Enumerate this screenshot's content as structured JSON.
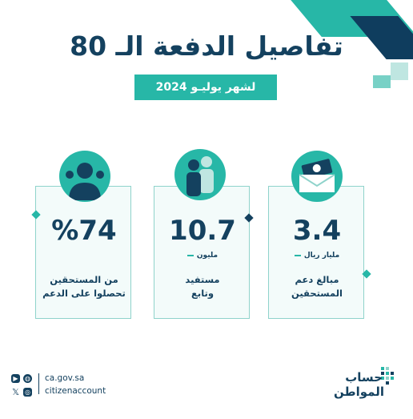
{
  "header": {
    "title": "تفاصيل الدفعة الـ 80",
    "subtitle": "لشهر يوليـو 2024"
  },
  "stats": [
    {
      "value": "3.4",
      "unit": "مليار ريال",
      "desc_line1": "مبالغ دعم",
      "desc_line2": "المستحقين"
    },
    {
      "value": "10.7",
      "unit": "مليون",
      "desc_line1": "مستفيد",
      "desc_line2": "وتابع"
    },
    {
      "value": "%74",
      "desc_line1": "من المستحقين",
      "desc_line2": "تحصلوا على الدعم"
    }
  ],
  "footer": {
    "website": "ca.gov.sa",
    "handle": "citizenaccount",
    "logo_line1": "حساب",
    "logo_line2": "المواطن"
  },
  "colors": {
    "navy": "#14415f",
    "teal": "#27b7a7",
    "light_teal": "#8fd3cb"
  },
  "icons": [
    "money-envelope-icon",
    "people-icon",
    "person-group-icon",
    "youtube-icon",
    "globe-icon",
    "x-icon",
    "instagram-icon"
  ]
}
